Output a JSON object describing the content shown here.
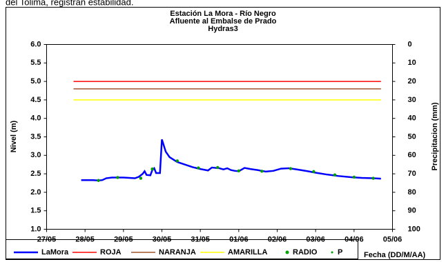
{
  "caption": "del Tolima, registran estabilidad.",
  "chart_data": {
    "type": "line",
    "title": [
      "Estación La Mora - Río Negro",
      "Afluente al Embalse de Prado",
      "Hydras3"
    ],
    "y_label": "Nivel (m)",
    "y2_label": "Precipitacion (mm)",
    "x_label": "Fecha (DD/M/AA)",
    "xlim": [
      0,
      9
    ],
    "xticks": [
      {
        "value": 0,
        "label": "27/05"
      },
      {
        "value": 1,
        "label": "28/05"
      },
      {
        "value": 2,
        "label": "29/05"
      },
      {
        "value": 3,
        "label": "30/05"
      },
      {
        "value": 4,
        "label": "31/05"
      },
      {
        "value": 5,
        "label": "01/06"
      },
      {
        "value": 6,
        "label": "02/06"
      },
      {
        "value": 7,
        "label": "03/06"
      },
      {
        "value": 8,
        "label": "04/06"
      },
      {
        "value": 9,
        "label": "05/06"
      }
    ],
    "ylim": [
      1,
      6
    ],
    "yticks": [
      {
        "value": 1,
        "label": "1.0"
      },
      {
        "value": 1.5,
        "label": "1.5"
      },
      {
        "value": 2,
        "label": "2.0"
      },
      {
        "value": 2.5,
        "label": "2.5"
      },
      {
        "value": 3,
        "label": "3.0"
      },
      {
        "value": 3.5,
        "label": "3.5"
      },
      {
        "value": 4,
        "label": "4.0"
      },
      {
        "value": 4.5,
        "label": "4.5"
      },
      {
        "value": 5,
        "label": "5.0"
      },
      {
        "value": 5.5,
        "label": "5.5"
      },
      {
        "value": 6,
        "label": "6.0"
      }
    ],
    "y2lim": [
      100,
      0
    ],
    "y2ticks": [
      0,
      10,
      20,
      30,
      40,
      50,
      60,
      70,
      80,
      90,
      100
    ],
    "series": [
      {
        "name": "LaMora",
        "color": "#0000ff",
        "style": "line",
        "x": [
          0.9,
          1.2,
          1.35,
          1.45,
          1.55,
          1.7,
          2.0,
          2.3,
          2.4,
          2.5,
          2.55,
          2.6,
          2.7,
          2.75,
          2.8,
          2.85,
          2.95,
          3.0,
          3.1,
          3.2,
          3.4,
          3.6,
          3.8,
          4.0,
          4.2,
          4.3,
          4.5,
          4.6,
          4.7,
          4.8,
          4.9,
          5.0,
          5.15,
          5.3,
          5.5,
          5.7,
          5.9,
          6.1,
          6.3,
          6.5,
          6.8,
          7.0,
          7.3,
          7.6,
          7.9,
          8.2,
          8.5,
          8.7
        ],
        "values": [
          2.33,
          2.33,
          2.32,
          2.33,
          2.38,
          2.4,
          2.4,
          2.38,
          2.42,
          2.5,
          2.57,
          2.47,
          2.46,
          2.6,
          2.65,
          2.52,
          2.52,
          3.43,
          3.1,
          2.95,
          2.82,
          2.75,
          2.68,
          2.63,
          2.59,
          2.67,
          2.65,
          2.62,
          2.65,
          2.6,
          2.58,
          2.57,
          2.66,
          2.63,
          2.6,
          2.56,
          2.58,
          2.64,
          2.65,
          2.62,
          2.57,
          2.53,
          2.48,
          2.44,
          2.41,
          2.39,
          2.38,
          2.37
        ]
      },
      {
        "name": "ROJA",
        "color": "#ff0000",
        "style": "line",
        "x": [
          0.7,
          8.7
        ],
        "values": [
          5,
          5
        ]
      },
      {
        "name": "NARANJA",
        "color": "#a0522d",
        "style": "line",
        "x": [
          0.7,
          8.7
        ],
        "values": [
          4.8,
          4.8
        ]
      },
      {
        "name": "AMARILLA",
        "color": "#ffff00",
        "style": "line",
        "x": [
          0.7,
          8.7
        ],
        "values": [
          4.5,
          4.5
        ]
      },
      {
        "name": "RADIO",
        "color": "#00a000",
        "style": "dot",
        "x": [
          1.35,
          1.85,
          2.45,
          2.75,
          3.4,
          3.95,
          4.45,
          5.0,
          5.6,
          6.35,
          6.95,
          7.5,
          8.0,
          8.5
        ],
        "values": [
          2.32,
          2.4,
          2.38,
          2.63,
          2.85,
          2.66,
          2.67,
          2.58,
          2.57,
          2.64,
          2.56,
          2.47,
          2.41,
          2.38
        ]
      },
      {
        "name": "P",
        "color": "#00a000",
        "style": "smalldot",
        "x": [],
        "values": []
      }
    ]
  }
}
